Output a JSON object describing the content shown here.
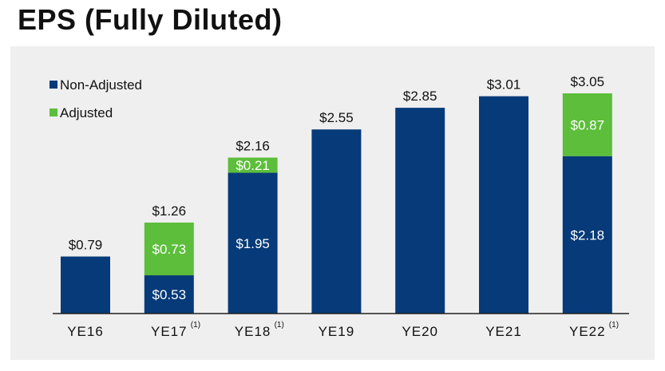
{
  "title": "EPS (Fully Diluted)",
  "colors": {
    "non_adjusted": "#063a78",
    "adjusted": "#5cbe3a",
    "panel": "#efefef"
  },
  "chart_data": {
    "type": "bar",
    "stacked": true,
    "categories": [
      "YE16",
      "YE17",
      "YE18",
      "YE19",
      "YE20",
      "YE21",
      "YE22"
    ],
    "footnotes": [
      "",
      "(1)",
      "(1)",
      "",
      "",
      "",
      "(1)"
    ],
    "series": [
      {
        "name": "Non-Adjusted",
        "values": [
          0.79,
          0.53,
          1.95,
          2.55,
          2.85,
          3.01,
          2.18
        ]
      },
      {
        "name": "Adjusted",
        "values": [
          0,
          0.73,
          0.21,
          0,
          0,
          0,
          0.87
        ]
      }
    ],
    "segment_labels": {
      "Non-Adjusted": [
        "",
        "$0.53",
        "$1.95",
        "",
        "",
        "",
        "$2.18"
      ],
      "Adjusted": [
        "",
        "$0.73",
        "$0.21",
        "",
        "",
        "",
        "$0.87"
      ]
    },
    "total_labels": [
      "$0.79",
      "$1.26",
      "$2.16",
      "$2.55",
      "$2.85",
      "$3.01",
      "$3.05"
    ],
    "legend": {
      "position": "top-left",
      "entries": [
        "Non-Adjusted",
        "Adjusted"
      ]
    },
    "ylim": [
      0,
      3.05
    ],
    "grid": false
  }
}
